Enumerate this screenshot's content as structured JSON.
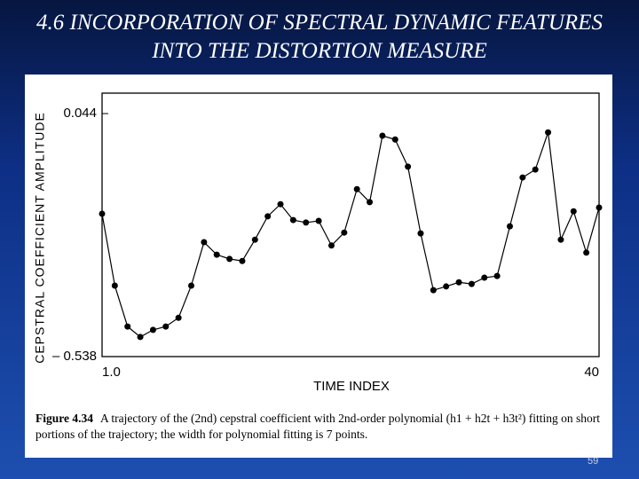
{
  "title": "4.6 INCORPORATION OF SPECTRAL DYNAMIC FEATURES INTO THE DISTORTION MEASURE",
  "chart_data": {
    "type": "line",
    "x_label": "TIME INDEX",
    "y_label": "CEPSTRAL COEFFICIENT AMPLITUDE",
    "x": [
      1,
      2,
      3,
      4,
      5,
      6,
      7,
      8,
      9,
      10,
      11,
      12,
      13,
      14,
      15,
      16,
      17,
      18,
      19,
      20,
      21,
      22,
      23,
      24,
      25,
      26,
      27,
      28,
      29,
      30,
      31,
      32,
      33,
      34,
      35,
      36,
      37,
      38,
      39,
      40
    ],
    "series": [
      {
        "color": "#000000",
        "values": [
          -0.196,
          -0.368,
          -0.466,
          -0.491,
          -0.474,
          -0.466,
          -0.445,
          -0.368,
          -0.264,
          -0.294,
          -0.304,
          -0.309,
          -0.258,
          -0.202,
          -0.173,
          -0.211,
          -0.217,
          -0.213,
          -0.272,
          -0.241,
          -0.137,
          -0.168,
          -0.009,
          -0.018,
          -0.083,
          -0.243,
          -0.379,
          -0.37,
          -0.36,
          -0.364,
          -0.349,
          -0.345,
          -0.226,
          -0.109,
          -0.09,
          -0.001,
          -0.258,
          -0.19,
          -0.289,
          -0.181
        ]
      }
    ],
    "xlim": [
      1,
      40
    ],
    "ylim": [
      -0.538,
      0.093
    ],
    "xticks": [
      {
        "value": 1,
        "label": "1.0"
      },
      40
    ],
    "yticks": [
      0.044,
      {
        "value": -0.538,
        "label": "– 0.538"
      }
    ]
  },
  "caption": {
    "figure": "Figure 4.34",
    "text": "A trajectory of the (2nd) cepstral coefficient with 2nd-order polynomial (h1 + h2t + h3t²) fitting on short portions of the trajectory; the width for polynomial fitting is 7 points."
  },
  "page_number": "59"
}
